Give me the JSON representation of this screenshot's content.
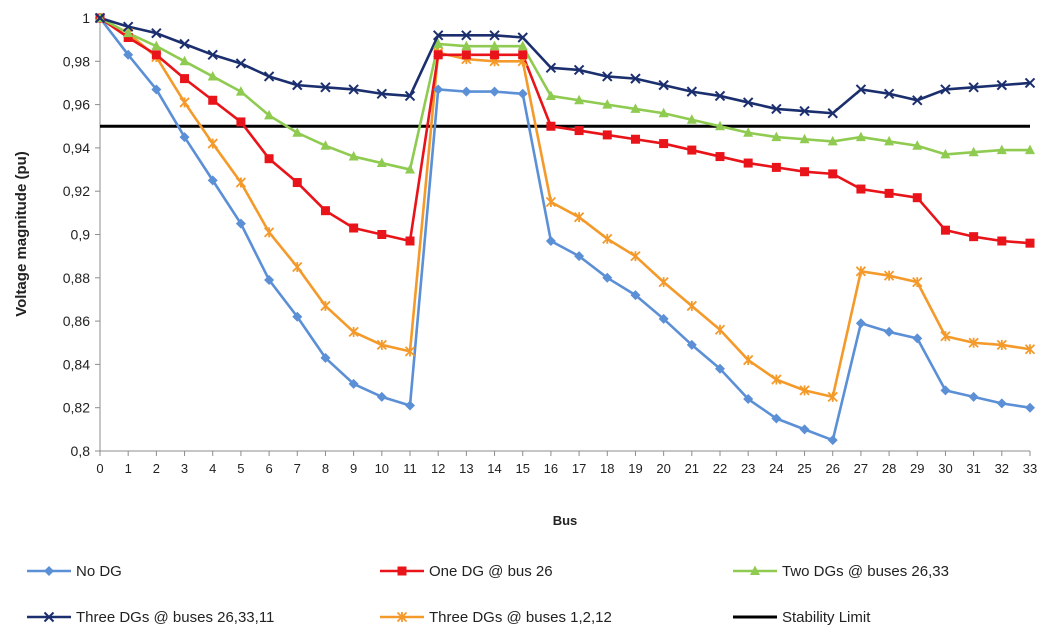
{
  "chart_data": {
    "type": "line",
    "title": "",
    "xlabel": "Bus",
    "ylabel": "Voltage magnitude (pu)",
    "x": [
      0,
      1,
      2,
      3,
      4,
      5,
      6,
      7,
      8,
      9,
      10,
      11,
      12,
      13,
      14,
      15,
      16,
      17,
      18,
      19,
      20,
      21,
      22,
      23,
      24,
      25,
      26,
      27,
      28,
      29,
      30,
      31,
      32,
      33
    ],
    "ylim": [
      0.8,
      1.0
    ],
    "yticks": [
      "0,8",
      "0,82",
      "0,84",
      "0,86",
      "0,88",
      "0,9",
      "0,92",
      "0,94",
      "0,96",
      "0,98",
      "1"
    ],
    "ytick_values": [
      0.8,
      0.82,
      0.84,
      0.86,
      0.88,
      0.9,
      0.92,
      0.94,
      0.96,
      0.98,
      1.0
    ],
    "grid": false,
    "legend_position": "bottom",
    "series": [
      {
        "name": "No DG",
        "color": "#5b8fd6",
        "marker": "diamond",
        "values": [
          1.0,
          0.983,
          0.967,
          0.945,
          0.925,
          0.905,
          0.879,
          0.862,
          0.843,
          0.831,
          0.825,
          0.821,
          0.967,
          0.966,
          0.966,
          0.965,
          0.897,
          0.89,
          0.88,
          0.872,
          0.861,
          0.849,
          0.838,
          0.824,
          0.815,
          0.81,
          0.805,
          0.859,
          0.855,
          0.852,
          0.828,
          0.825,
          0.822,
          0.82
        ]
      },
      {
        "name": "One DG @ bus 26",
        "color": "#e8141a",
        "marker": "square",
        "values": [
          1.0,
          0.991,
          0.983,
          0.972,
          0.962,
          0.952,
          0.935,
          0.924,
          0.911,
          0.903,
          0.9,
          0.897,
          0.983,
          0.983,
          0.983,
          0.983,
          0.95,
          0.948,
          0.946,
          0.944,
          0.942,
          0.939,
          0.936,
          0.933,
          0.931,
          0.929,
          0.928,
          0.921,
          0.919,
          0.917,
          0.902,
          0.899,
          0.897,
          0.896
        ]
      },
      {
        "name": "Two DGs @ buses 26,33",
        "color": "#8fcb50",
        "marker": "triangle",
        "values": [
          1.0,
          0.993,
          0.987,
          0.98,
          0.973,
          0.966,
          0.955,
          0.947,
          0.941,
          0.936,
          0.933,
          0.93,
          0.988,
          0.987,
          0.987,
          0.987,
          0.964,
          0.962,
          0.96,
          0.958,
          0.956,
          0.953,
          0.95,
          0.947,
          0.945,
          0.944,
          0.943,
          0.945,
          0.943,
          0.941,
          0.937,
          0.938,
          0.939,
          0.939
        ]
      },
      {
        "name": "Three DGs @ buses 26,33,11",
        "color": "#1b2f6e",
        "marker": "x",
        "values": [
          1.0,
          0.996,
          0.993,
          0.988,
          0.983,
          0.979,
          0.973,
          0.969,
          0.968,
          0.967,
          0.965,
          0.964,
          0.992,
          0.992,
          0.992,
          0.991,
          0.977,
          0.976,
          0.973,
          0.972,
          0.969,
          0.966,
          0.964,
          0.961,
          0.958,
          0.957,
          0.956,
          0.967,
          0.965,
          0.962,
          0.967,
          0.968,
          0.969,
          0.97
        ]
      },
      {
        "name": "Three DGs @ buses 1,2,12",
        "color": "#f49a2a",
        "marker": "star",
        "values": [
          1.0,
          0.993,
          0.982,
          0.961,
          0.942,
          0.924,
          0.901,
          0.885,
          0.867,
          0.855,
          0.849,
          0.846,
          0.984,
          0.981,
          0.98,
          0.98,
          0.915,
          0.908,
          0.898,
          0.89,
          0.878,
          0.867,
          0.856,
          0.842,
          0.833,
          0.828,
          0.825,
          0.883,
          0.881,
          0.878,
          0.853,
          0.85,
          0.849,
          0.847
        ]
      },
      {
        "name": "Stability Limit",
        "color": "#000000",
        "marker": "none",
        "values": [
          0.95,
          0.95,
          0.95,
          0.95,
          0.95,
          0.95,
          0.95,
          0.95,
          0.95,
          0.95,
          0.95,
          0.95,
          0.95,
          0.95,
          0.95,
          0.95,
          0.95,
          0.95,
          0.95,
          0.95,
          0.95,
          0.95,
          0.95,
          0.95,
          0.95,
          0.95,
          0.95,
          0.95,
          0.95,
          0.95,
          0.95,
          0.95,
          0.95,
          0.95
        ]
      }
    ]
  }
}
